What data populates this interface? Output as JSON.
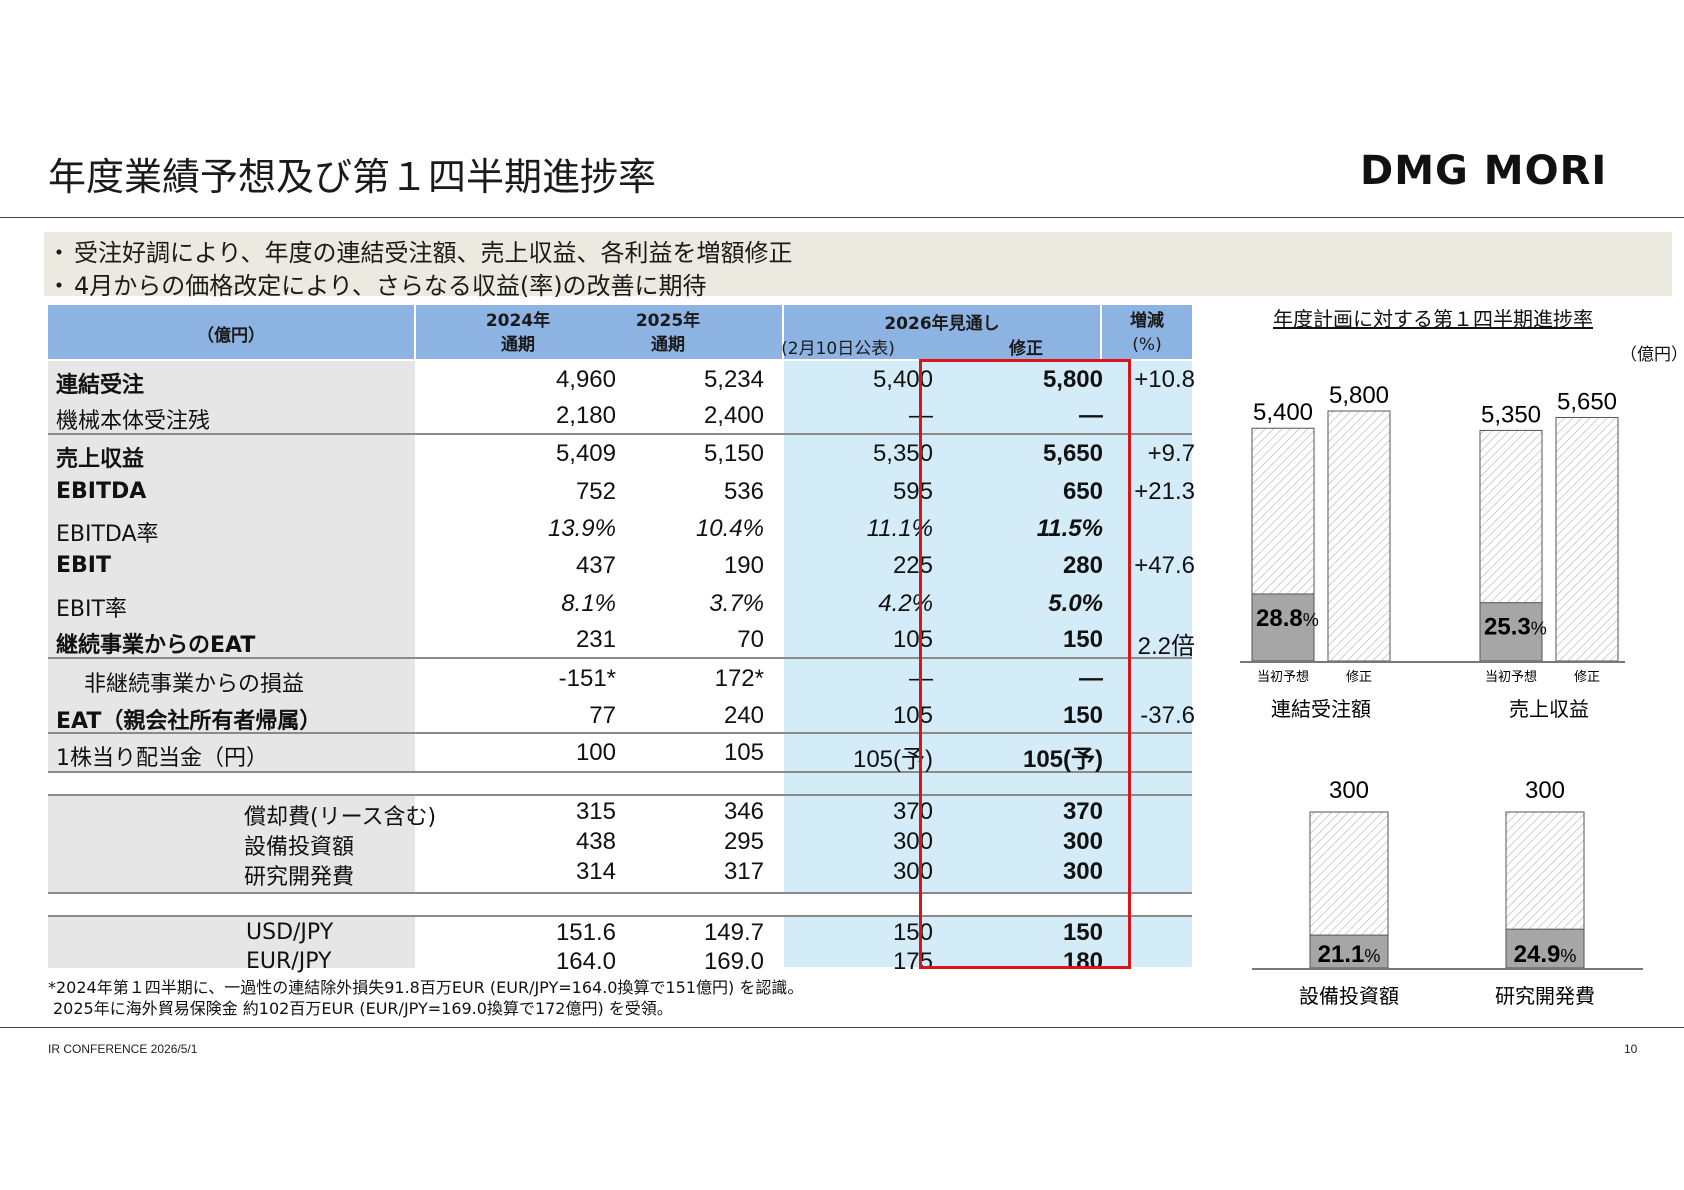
{
  "header": {
    "title": "年度業績予想及び第１四半期進捗率",
    "logo": "DMG MORI"
  },
  "bullets": [
    "受注好調により、年度の連結受注額、売上収益、各利益を増額修正",
    "4月からの価格改定により、さらなる収益(率)の改善に期待"
  ],
  "table": {
    "unit_header": "（億円）",
    "col_2024": [
      "2024年",
      "通期"
    ],
    "col_2025": [
      "2025年",
      "通期"
    ],
    "col_2026": "2026年見通し",
    "col_2026_sub1": "(2月10日公表)",
    "col_2026_sub2": "修正",
    "col_change": [
      "増減",
      "(%)"
    ],
    "rows": [
      {
        "label": "連結受注",
        "v2024": "4,960",
        "v2025": "5,234",
        "v2026a": "5,400",
        "v2026b": "5,800",
        "chg": "+10.8"
      },
      {
        "label": "機械本体受注残",
        "v2024": "2,180",
        "v2025": "2,400",
        "v2026a": "―",
        "v2026b": "―",
        "chg": ""
      },
      {
        "label": "売上収益",
        "v2024": "5,409",
        "v2025": "5,150",
        "v2026a": "5,350",
        "v2026b": "5,650",
        "chg": "+9.7"
      },
      {
        "label": "EBITDA",
        "v2024": "752",
        "v2025": "536",
        "v2026a": "595",
        "v2026b": "650",
        "chg": "+21.3"
      },
      {
        "label": "EBITDA率",
        "v2024": "13.9%",
        "v2025": "10.4%",
        "v2026a": "11.1%",
        "v2026b": "11.5%",
        "chg": ""
      },
      {
        "label": "EBIT",
        "v2024": "437",
        "v2025": "190",
        "v2026a": "225",
        "v2026b": "280",
        "chg": "+47.6"
      },
      {
        "label": "EBIT率",
        "v2024": "8.1%",
        "v2025": "3.7%",
        "v2026a": "4.2%",
        "v2026b": "5.0%",
        "chg": ""
      },
      {
        "label": "継続事業からのEAT",
        "v2024": "231",
        "v2025": "70",
        "v2026a": "105",
        "v2026b": "150",
        "chg": "2.2倍"
      },
      {
        "label": "非継続事業からの損益",
        "v2024": "-151*",
        "v2025": "172*",
        "v2026a": "―",
        "v2026b": "―",
        "chg": ""
      },
      {
        "label": "EAT（親会社所有者帰属）",
        "v2024": "77",
        "v2025": "240",
        "v2026a": "105",
        "v2026b": "150",
        "chg": "-37.6"
      },
      {
        "label": "1株当り配当金（円）",
        "v2024": "100",
        "v2025": "105",
        "v2026a": "105(予)",
        "v2026b": "105(予)",
        "chg": ""
      },
      {
        "label": "償却費(リース含む)",
        "v2024": "315",
        "v2025": "346",
        "v2026a": "370",
        "v2026b": "370",
        "chg": ""
      },
      {
        "label": "設備投資額",
        "v2024": "438",
        "v2025": "295",
        "v2026a": "300",
        "v2026b": "300",
        "chg": ""
      },
      {
        "label": "研究開発費",
        "v2024": "314",
        "v2025": "317",
        "v2026a": "300",
        "v2026b": "300",
        "chg": ""
      },
      {
        "label": "USD/JPY",
        "v2024": "151.6",
        "v2025": "149.7",
        "v2026a": "150",
        "v2026b": "150",
        "chg": ""
      },
      {
        "label": "EUR/JPY",
        "v2024": "164.0",
        "v2025": "169.0",
        "v2026a": "175",
        "v2026b": "180",
        "chg": ""
      }
    ]
  },
  "footnote": [
    "*2024年第１四半期に、一過性の連結除外損失91.8百万EUR (EUR/JPY=164.0換算で151億円) を認識。",
    "2025年に海外貿易保険金 約102百万EUR (EUR/JPY=169.0換算で172億円) を受領。"
  ],
  "footer": {
    "left": "IR CONFERENCE 2026/5/1",
    "page": "10"
  },
  "charts": {
    "title": "年度計画に対する第１四半期進捗率",
    "unit": "（億円）",
    "bar_label_initial": "当初予想",
    "bar_label_revised": "修正",
    "colors": {
      "hatch": "#cfcfcf",
      "fill": "#a6a6a6"
    },
    "chart_data": [
      {
        "type": "bar",
        "name": "連結受注額",
        "initial": 5400,
        "revised": 5800,
        "initial_label": "5,400",
        "revised_label": "5,800",
        "progress_pct": 28.8,
        "progress_label": "28.8",
        "show_categories": true
      },
      {
        "type": "bar",
        "name": "売上収益",
        "initial": 5350,
        "revised": 5650,
        "initial_label": "5,350",
        "revised_label": "5,650",
        "progress_pct": 25.3,
        "progress_label": "25.3",
        "show_categories": true
      },
      {
        "type": "bar",
        "name": "設備投資額",
        "revised": 300,
        "revised_label": "300",
        "progress_pct": 21.1,
        "progress_label": "21.1",
        "show_categories": false
      },
      {
        "type": "bar",
        "name": "研究開発費",
        "revised": 300,
        "revised_label": "300",
        "progress_pct": 24.9,
        "progress_label": "24.9",
        "show_categories": false
      }
    ]
  }
}
